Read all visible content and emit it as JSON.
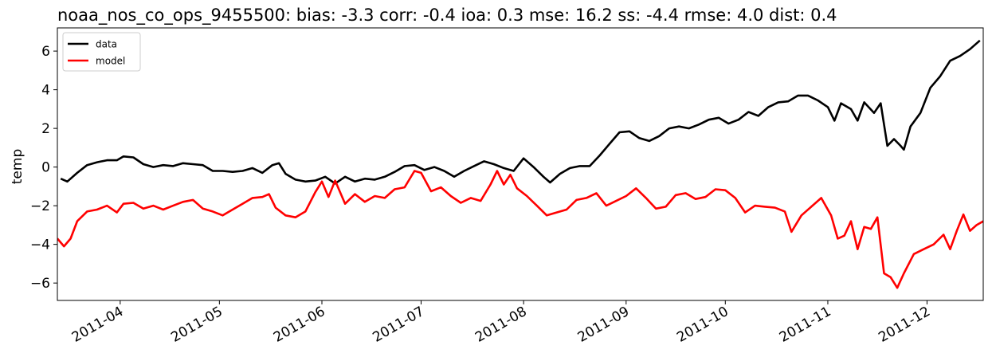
{
  "chart_data": {
    "type": "line",
    "title": "noaa_nos_co_ops_9455500: bias: -3.3  corr: -0.4  ioa: 0.3  mse: 16.2  ss: -4.4  rmse: 4.0  dist: 0.4",
    "xlabel": "",
    "ylabel": "temp",
    "xlim": [
      "2011-03-13",
      "2011-12-18"
    ],
    "ylim": [
      -6.9,
      7.2
    ],
    "yticks": [
      -6,
      -4,
      -2,
      0,
      2,
      4,
      6
    ],
    "yticklabels": [
      "−6",
      "−4",
      "−2",
      "0",
      "2",
      "4",
      "6"
    ],
    "xticks": [
      "2011-04-01",
      "2011-05-01",
      "2011-06-01",
      "2011-07-01",
      "2011-08-01",
      "2011-09-01",
      "2011-10-01",
      "2011-11-01",
      "2011-12-01"
    ],
    "xticklabels": [
      "2011-04",
      "2011-05",
      "2011-06",
      "2011-07",
      "2011-08",
      "2011-09",
      "2011-10",
      "2011-11",
      "2011-12"
    ],
    "grid": false,
    "legend": "upper left",
    "series": [
      {
        "name": "data",
        "color": "#000000",
        "points": [
          [
            "2011-03-14",
            -0.6
          ],
          [
            "2011-03-16",
            -0.75
          ],
          [
            "2011-03-19",
            -0.3
          ],
          [
            "2011-03-22",
            0.1
          ],
          [
            "2011-03-25",
            0.25
          ],
          [
            "2011-03-28",
            0.35
          ],
          [
            "2011-03-31",
            0.35
          ],
          [
            "2011-04-02",
            0.55
          ],
          [
            "2011-04-05",
            0.5
          ],
          [
            "2011-04-08",
            0.15
          ],
          [
            "2011-04-11",
            0.0
          ],
          [
            "2011-04-14",
            0.1
          ],
          [
            "2011-04-17",
            0.05
          ],
          [
            "2011-04-20",
            0.2
          ],
          [
            "2011-04-23",
            0.15
          ],
          [
            "2011-04-26",
            0.1
          ],
          [
            "2011-04-29",
            -0.2
          ],
          [
            "2011-05-02",
            -0.2
          ],
          [
            "2011-05-05",
            -0.25
          ],
          [
            "2011-05-08",
            -0.2
          ],
          [
            "2011-05-11",
            -0.05
          ],
          [
            "2011-05-14",
            -0.3
          ],
          [
            "2011-05-17",
            0.1
          ],
          [
            "2011-05-19",
            0.2
          ],
          [
            "2011-05-21",
            -0.35
          ],
          [
            "2011-05-24",
            -0.65
          ],
          [
            "2011-05-27",
            -0.75
          ],
          [
            "2011-05-30",
            -0.7
          ],
          [
            "2011-06-02",
            -0.5
          ],
          [
            "2011-06-05",
            -0.85
          ],
          [
            "2011-06-08",
            -0.5
          ],
          [
            "2011-06-11",
            -0.75
          ],
          [
            "2011-06-14",
            -0.6
          ],
          [
            "2011-06-17",
            -0.65
          ],
          [
            "2011-06-20",
            -0.5
          ],
          [
            "2011-06-23",
            -0.25
          ],
          [
            "2011-06-26",
            0.05
          ],
          [
            "2011-06-29",
            0.1
          ],
          [
            "2011-07-02",
            -0.15
          ],
          [
            "2011-07-05",
            0.0
          ],
          [
            "2011-07-08",
            -0.2
          ],
          [
            "2011-07-11",
            -0.5
          ],
          [
            "2011-07-14",
            -0.2
          ],
          [
            "2011-07-17",
            0.05
          ],
          [
            "2011-07-20",
            0.3
          ],
          [
            "2011-07-23",
            0.15
          ],
          [
            "2011-07-26",
            -0.05
          ],
          [
            "2011-07-29",
            -0.2
          ],
          [
            "2011-08-01",
            0.45
          ],
          [
            "2011-08-04",
            0.0
          ],
          [
            "2011-08-07",
            -0.5
          ],
          [
            "2011-08-09",
            -0.8
          ],
          [
            "2011-08-12",
            -0.35
          ],
          [
            "2011-08-15",
            -0.05
          ],
          [
            "2011-08-18",
            0.05
          ],
          [
            "2011-08-21",
            0.05
          ],
          [
            "2011-08-24",
            0.6
          ],
          [
            "2011-08-27",
            1.2
          ],
          [
            "2011-08-30",
            1.8
          ],
          [
            "2011-09-02",
            1.85
          ],
          [
            "2011-09-05",
            1.5
          ],
          [
            "2011-09-08",
            1.35
          ],
          [
            "2011-09-11",
            1.6
          ],
          [
            "2011-09-14",
            2.0
          ],
          [
            "2011-09-17",
            2.1
          ],
          [
            "2011-09-20",
            2.0
          ],
          [
            "2011-09-23",
            2.2
          ],
          [
            "2011-09-26",
            2.45
          ],
          [
            "2011-09-29",
            2.55
          ],
          [
            "2011-10-02",
            2.25
          ],
          [
            "2011-10-05",
            2.45
          ],
          [
            "2011-10-08",
            2.85
          ],
          [
            "2011-10-11",
            2.65
          ],
          [
            "2011-10-14",
            3.1
          ],
          [
            "2011-10-17",
            3.35
          ],
          [
            "2011-10-20",
            3.4
          ],
          [
            "2011-10-23",
            3.7
          ],
          [
            "2011-10-26",
            3.7
          ],
          [
            "2011-10-29",
            3.45
          ],
          [
            "2011-11-01",
            3.1
          ],
          [
            "2011-11-03",
            2.4
          ],
          [
            "2011-11-05",
            3.3
          ],
          [
            "2011-11-08",
            3.0
          ],
          [
            "2011-11-10",
            2.4
          ],
          [
            "2011-11-12",
            3.35
          ],
          [
            "2011-11-15",
            2.8
          ],
          [
            "2011-11-17",
            3.3
          ],
          [
            "2011-11-19",
            1.1
          ],
          [
            "2011-11-21",
            1.45
          ],
          [
            "2011-11-23",
            1.1
          ],
          [
            "2011-11-24",
            0.9
          ],
          [
            "2011-11-26",
            2.1
          ],
          [
            "2011-11-29",
            2.8
          ],
          [
            "2011-12-02",
            4.1
          ],
          [
            "2011-12-05",
            4.7
          ],
          [
            "2011-12-08",
            5.5
          ],
          [
            "2011-12-11",
            5.75
          ],
          [
            "2011-12-14",
            6.1
          ],
          [
            "2011-12-17",
            6.55
          ]
        ]
      },
      {
        "name": "model",
        "color": "#ff0000",
        "points": [
          [
            "2011-03-13",
            -3.7
          ],
          [
            "2011-03-15",
            -4.1
          ],
          [
            "2011-03-17",
            -3.7
          ],
          [
            "2011-03-19",
            -2.8
          ],
          [
            "2011-03-22",
            -2.3
          ],
          [
            "2011-03-25",
            -2.2
          ],
          [
            "2011-03-28",
            -2.0
          ],
          [
            "2011-03-31",
            -2.35
          ],
          [
            "2011-04-02",
            -1.9
          ],
          [
            "2011-04-05",
            -1.85
          ],
          [
            "2011-04-08",
            -2.15
          ],
          [
            "2011-04-11",
            -2.0
          ],
          [
            "2011-04-14",
            -2.2
          ],
          [
            "2011-04-17",
            -2.0
          ],
          [
            "2011-04-20",
            -1.8
          ],
          [
            "2011-04-23",
            -1.7
          ],
          [
            "2011-04-26",
            -2.15
          ],
          [
            "2011-04-29",
            -2.3
          ],
          [
            "2011-05-02",
            -2.5
          ],
          [
            "2011-05-05",
            -2.2
          ],
          [
            "2011-05-08",
            -1.9
          ],
          [
            "2011-05-11",
            -1.6
          ],
          [
            "2011-05-14",
            -1.55
          ],
          [
            "2011-05-16",
            -1.4
          ],
          [
            "2011-05-18",
            -2.1
          ],
          [
            "2011-05-21",
            -2.5
          ],
          [
            "2011-05-24",
            -2.6
          ],
          [
            "2011-05-27",
            -2.3
          ],
          [
            "2011-05-30",
            -1.3
          ],
          [
            "2011-06-01",
            -0.75
          ],
          [
            "2011-06-03",
            -1.55
          ],
          [
            "2011-06-05",
            -0.7
          ],
          [
            "2011-06-08",
            -1.9
          ],
          [
            "2011-06-11",
            -1.4
          ],
          [
            "2011-06-14",
            -1.8
          ],
          [
            "2011-06-17",
            -1.5
          ],
          [
            "2011-06-20",
            -1.6
          ],
          [
            "2011-06-23",
            -1.15
          ],
          [
            "2011-06-26",
            -1.05
          ],
          [
            "2011-06-29",
            -0.2
          ],
          [
            "2011-07-01",
            -0.3
          ],
          [
            "2011-07-04",
            -1.25
          ],
          [
            "2011-07-07",
            -1.05
          ],
          [
            "2011-07-10",
            -1.5
          ],
          [
            "2011-07-13",
            -1.85
          ],
          [
            "2011-07-16",
            -1.6
          ],
          [
            "2011-07-19",
            -1.75
          ],
          [
            "2011-07-22",
            -0.9
          ],
          [
            "2011-07-24",
            -0.2
          ],
          [
            "2011-07-26",
            -0.9
          ],
          [
            "2011-07-28",
            -0.4
          ],
          [
            "2011-07-30",
            -1.1
          ],
          [
            "2011-08-02",
            -1.5
          ],
          [
            "2011-08-05",
            -2.0
          ],
          [
            "2011-08-08",
            -2.5
          ],
          [
            "2011-08-11",
            -2.35
          ],
          [
            "2011-08-14",
            -2.2
          ],
          [
            "2011-08-17",
            -1.7
          ],
          [
            "2011-08-20",
            -1.6
          ],
          [
            "2011-08-23",
            -1.35
          ],
          [
            "2011-08-26",
            -2.0
          ],
          [
            "2011-08-29",
            -1.75
          ],
          [
            "2011-09-01",
            -1.5
          ],
          [
            "2011-09-04",
            -1.1
          ],
          [
            "2011-09-07",
            -1.6
          ],
          [
            "2011-09-10",
            -2.15
          ],
          [
            "2011-09-13",
            -2.05
          ],
          [
            "2011-09-16",
            -1.45
          ],
          [
            "2011-09-19",
            -1.35
          ],
          [
            "2011-09-22",
            -1.65
          ],
          [
            "2011-09-25",
            -1.55
          ],
          [
            "2011-09-28",
            -1.15
          ],
          [
            "2011-10-01",
            -1.2
          ],
          [
            "2011-10-04",
            -1.6
          ],
          [
            "2011-10-07",
            -2.35
          ],
          [
            "2011-10-10",
            -2.0
          ],
          [
            "2011-10-13",
            -2.05
          ],
          [
            "2011-10-16",
            -2.1
          ],
          [
            "2011-10-19",
            -2.3
          ],
          [
            "2011-10-21",
            -3.35
          ],
          [
            "2011-10-24",
            -2.5
          ],
          [
            "2011-10-27",
            -2.05
          ],
          [
            "2011-10-30",
            -1.6
          ],
          [
            "2011-11-02",
            -2.5
          ],
          [
            "2011-11-04",
            -3.7
          ],
          [
            "2011-11-06",
            -3.55
          ],
          [
            "2011-11-08",
            -2.8
          ],
          [
            "2011-11-10",
            -4.25
          ],
          [
            "2011-11-12",
            -3.1
          ],
          [
            "2011-11-14",
            -3.2
          ],
          [
            "2011-11-16",
            -2.6
          ],
          [
            "2011-11-18",
            -5.5
          ],
          [
            "2011-11-20",
            -5.7
          ],
          [
            "2011-11-22",
            -6.25
          ],
          [
            "2011-11-24",
            -5.5
          ],
          [
            "2011-11-27",
            -4.5
          ],
          [
            "2011-11-30",
            -4.25
          ],
          [
            "2011-12-03",
            -4.0
          ],
          [
            "2011-12-06",
            -3.5
          ],
          [
            "2011-12-08",
            -4.25
          ],
          [
            "2011-12-10",
            -3.3
          ],
          [
            "2011-12-12",
            -2.45
          ],
          [
            "2011-12-14",
            -3.3
          ],
          [
            "2011-12-16",
            -3.0
          ],
          [
            "2011-12-18",
            -2.8
          ]
        ]
      }
    ]
  }
}
